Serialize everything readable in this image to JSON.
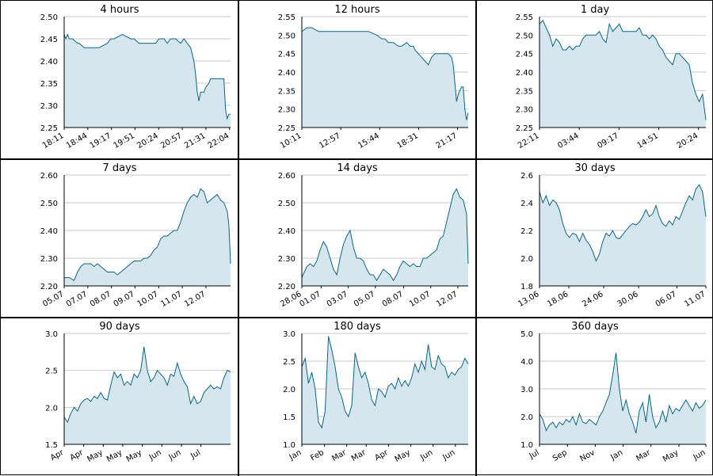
{
  "colors": {
    "line": "#0c6481",
    "fill": "#d5e6ee",
    "grid": "#b4b4b4",
    "axis": "#000000"
  },
  "chart_data": [
    {
      "type": "area",
      "title": "4 hours",
      "ylim": [
        2.25,
        2.5
      ],
      "yticks": [
        "2.50",
        "2.45",
        "2.40",
        "2.35",
        "2.30",
        "2.25"
      ],
      "xticks": [
        "18:11",
        "18:44",
        "19:17",
        "19:51",
        "20:24",
        "20:57",
        "21:31",
        "22:04"
      ],
      "xtick_positions": [
        0,
        0.142,
        0.284,
        0.426,
        0.568,
        0.71,
        0.852,
        0.994
      ],
      "x": [
        0,
        0.01,
        0.02,
        0.03,
        0.05,
        0.08,
        0.09,
        0.12,
        0.14,
        0.17,
        0.19,
        0.21,
        0.26,
        0.28,
        0.3,
        0.35,
        0.4,
        0.42,
        0.45,
        0.5,
        0.55,
        0.57,
        0.6,
        0.62,
        0.64,
        0.66,
        0.67,
        0.7,
        0.72,
        0.74,
        0.76,
        0.78,
        0.79,
        0.8,
        0.81,
        0.82,
        0.84,
        0.85,
        0.87,
        0.88,
        0.9,
        0.92,
        0.94,
        0.95,
        0.96,
        0.97,
        0.98,
        0.99,
        1.0
      ],
      "y": [
        2.46,
        2.45,
        2.46,
        2.45,
        2.45,
        2.44,
        2.44,
        2.43,
        2.43,
        2.43,
        2.43,
        2.43,
        2.44,
        2.45,
        2.45,
        2.46,
        2.45,
        2.45,
        2.44,
        2.44,
        2.44,
        2.45,
        2.45,
        2.44,
        2.45,
        2.45,
        2.45,
        2.44,
        2.45,
        2.44,
        2.43,
        2.4,
        2.37,
        2.33,
        2.31,
        2.33,
        2.33,
        2.34,
        2.35,
        2.36,
        2.36,
        2.36,
        2.36,
        2.36,
        2.36,
        2.29,
        2.27,
        2.28,
        2.28
      ]
    },
    {
      "type": "area",
      "title": "12 hours",
      "ylim": [
        2.25,
        2.55
      ],
      "yticks": [
        "2.55",
        "2.50",
        "2.45",
        "2.40",
        "2.35",
        "2.30",
        "2.25"
      ],
      "xticks": [
        "10:11",
        "12:57",
        "15:44",
        "18:31",
        "21:17"
      ],
      "xtick_positions": [
        0,
        0.234,
        0.468,
        0.702,
        0.936
      ],
      "x": [
        0,
        0.03,
        0.06,
        0.1,
        0.15,
        0.2,
        0.25,
        0.3,
        0.35,
        0.4,
        0.45,
        0.48,
        0.5,
        0.52,
        0.55,
        0.58,
        0.6,
        0.63,
        0.65,
        0.67,
        0.68,
        0.7,
        0.72,
        0.74,
        0.76,
        0.78,
        0.8,
        0.82,
        0.84,
        0.86,
        0.88,
        0.9,
        0.91,
        0.93,
        0.94,
        0.95,
        0.96,
        0.97,
        0.98,
        0.99,
        1.0
      ],
      "y": [
        2.51,
        2.52,
        2.52,
        2.51,
        2.51,
        2.51,
        2.51,
        2.51,
        2.51,
        2.51,
        2.5,
        2.49,
        2.49,
        2.48,
        2.48,
        2.47,
        2.47,
        2.48,
        2.47,
        2.47,
        2.46,
        2.45,
        2.44,
        2.43,
        2.42,
        2.44,
        2.45,
        2.45,
        2.45,
        2.45,
        2.45,
        2.44,
        2.42,
        2.32,
        2.34,
        2.35,
        2.36,
        2.36,
        2.3,
        2.27,
        2.29
      ]
    },
    {
      "type": "area",
      "title": "1 day",
      "ylim": [
        2.25,
        2.55
      ],
      "yticks": [
        "2.55",
        "2.50",
        "2.45",
        "2.40",
        "2.35",
        "2.30",
        "2.25"
      ],
      "xticks": [
        "22:11",
        "03:44",
        "09:17",
        "14:51",
        "20:24"
      ],
      "xtick_positions": [
        0,
        0.239,
        0.478,
        0.717,
        0.956
      ],
      "x": [
        0,
        0.02,
        0.04,
        0.06,
        0.08,
        0.1,
        0.12,
        0.14,
        0.16,
        0.18,
        0.2,
        0.22,
        0.24,
        0.26,
        0.28,
        0.3,
        0.32,
        0.34,
        0.36,
        0.38,
        0.4,
        0.42,
        0.44,
        0.46,
        0.48,
        0.5,
        0.52,
        0.54,
        0.56,
        0.58,
        0.6,
        0.62,
        0.64,
        0.66,
        0.68,
        0.7,
        0.72,
        0.74,
        0.76,
        0.78,
        0.8,
        0.82,
        0.84,
        0.86,
        0.88,
        0.9,
        0.92,
        0.94,
        0.96,
        0.98,
        1.0
      ],
      "y": [
        2.53,
        2.54,
        2.52,
        2.5,
        2.47,
        2.49,
        2.48,
        2.46,
        2.46,
        2.47,
        2.46,
        2.47,
        2.47,
        2.49,
        2.5,
        2.5,
        2.5,
        2.5,
        2.51,
        2.49,
        2.48,
        2.53,
        2.51,
        2.52,
        2.53,
        2.51,
        2.51,
        2.51,
        2.51,
        2.51,
        2.52,
        2.5,
        2.5,
        2.49,
        2.5,
        2.49,
        2.47,
        2.46,
        2.44,
        2.43,
        2.42,
        2.45,
        2.45,
        2.44,
        2.43,
        2.42,
        2.37,
        2.34,
        2.32,
        2.34,
        2.27
      ]
    },
    {
      "type": "area",
      "title": "7 days",
      "ylim": [
        2.2,
        2.6
      ],
      "yticks": [
        "2.60",
        "2.50",
        "2.40",
        "2.30",
        "2.20"
      ],
      "xticks": [
        "05.07",
        "07.07",
        "08.07",
        "09.07",
        "10.07",
        "11.07",
        "12.07"
      ],
      "xtick_positions": [
        0,
        0.142,
        0.284,
        0.426,
        0.568,
        0.71,
        0.852
      ],
      "x": [
        0,
        0.03,
        0.06,
        0.08,
        0.1,
        0.12,
        0.14,
        0.16,
        0.18,
        0.2,
        0.22,
        0.24,
        0.26,
        0.28,
        0.3,
        0.32,
        0.34,
        0.36,
        0.38,
        0.4,
        0.42,
        0.44,
        0.46,
        0.48,
        0.5,
        0.52,
        0.54,
        0.56,
        0.58,
        0.6,
        0.62,
        0.64,
        0.66,
        0.68,
        0.7,
        0.72,
        0.74,
        0.76,
        0.78,
        0.8,
        0.82,
        0.84,
        0.86,
        0.88,
        0.9,
        0.92,
        0.94,
        0.96,
        0.98,
        0.99,
        1.0
      ],
      "y": [
        2.23,
        2.23,
        2.22,
        2.25,
        2.27,
        2.28,
        2.28,
        2.28,
        2.27,
        2.28,
        2.27,
        2.26,
        2.25,
        2.25,
        2.25,
        2.24,
        2.25,
        2.26,
        2.27,
        2.28,
        2.29,
        2.29,
        2.29,
        2.3,
        2.3,
        2.31,
        2.33,
        2.34,
        2.37,
        2.38,
        2.38,
        2.39,
        2.4,
        2.4,
        2.43,
        2.47,
        2.5,
        2.52,
        2.53,
        2.52,
        2.55,
        2.54,
        2.5,
        2.51,
        2.52,
        2.53,
        2.51,
        2.5,
        2.47,
        2.42,
        2.28
      ]
    },
    {
      "type": "area",
      "title": "14 days",
      "ylim": [
        2.2,
        2.6
      ],
      "yticks": [
        "2.60",
        "2.50",
        "2.40",
        "2.30",
        "2.20"
      ],
      "xticks": [
        "28.06",
        "01.07",
        "03.07",
        "05.07",
        "08.07",
        "10.07",
        "12.07"
      ],
      "xtick_positions": [
        0,
        0.116,
        0.279,
        0.442,
        0.612,
        0.775,
        0.938
      ],
      "x": [
        0,
        0.03,
        0.05,
        0.07,
        0.09,
        0.11,
        0.13,
        0.15,
        0.17,
        0.19,
        0.21,
        0.23,
        0.25,
        0.27,
        0.29,
        0.31,
        0.33,
        0.35,
        0.37,
        0.39,
        0.41,
        0.43,
        0.45,
        0.47,
        0.49,
        0.51,
        0.53,
        0.55,
        0.57,
        0.59,
        0.61,
        0.63,
        0.65,
        0.67,
        0.69,
        0.71,
        0.73,
        0.75,
        0.77,
        0.79,
        0.81,
        0.83,
        0.85,
        0.87,
        0.89,
        0.91,
        0.93,
        0.95,
        0.97,
        0.99,
        1.0
      ],
      "y": [
        2.23,
        2.27,
        2.28,
        2.27,
        2.29,
        2.33,
        2.36,
        2.34,
        2.3,
        2.26,
        2.24,
        2.3,
        2.35,
        2.38,
        2.4,
        2.34,
        2.3,
        2.3,
        2.29,
        2.26,
        2.24,
        2.24,
        2.22,
        2.24,
        2.26,
        2.25,
        2.24,
        2.22,
        2.24,
        2.27,
        2.29,
        2.28,
        2.27,
        2.28,
        2.27,
        2.27,
        2.3,
        2.3,
        2.31,
        2.32,
        2.33,
        2.37,
        2.38,
        2.43,
        2.48,
        2.53,
        2.55,
        2.52,
        2.51,
        2.46,
        2.28
      ]
    },
    {
      "type": "area",
      "title": "30 days",
      "ylim": [
        1.8,
        2.6
      ],
      "yticks": [
        "2.6",
        "2.4",
        "2.2",
        "2.0",
        "1.8"
      ],
      "xticks": [
        "13.06",
        "18.06",
        "24.06",
        "30.06",
        "06.07",
        "11.07"
      ],
      "xtick_positions": [
        0,
        0.176,
        0.386,
        0.596,
        0.826,
        1.0
      ],
      "x": [
        0,
        0.02,
        0.04,
        0.06,
        0.08,
        0.1,
        0.12,
        0.14,
        0.16,
        0.18,
        0.2,
        0.22,
        0.24,
        0.26,
        0.28,
        0.3,
        0.32,
        0.34,
        0.36,
        0.38,
        0.4,
        0.42,
        0.44,
        0.46,
        0.48,
        0.5,
        0.52,
        0.54,
        0.56,
        0.58,
        0.6,
        0.62,
        0.64,
        0.66,
        0.68,
        0.7,
        0.72,
        0.74,
        0.76,
        0.78,
        0.8,
        0.82,
        0.84,
        0.86,
        0.88,
        0.9,
        0.92,
        0.94,
        0.96,
        0.98,
        1.0
      ],
      "y": [
        2.48,
        2.4,
        2.45,
        2.38,
        2.42,
        2.4,
        2.35,
        2.25,
        2.18,
        2.15,
        2.18,
        2.17,
        2.12,
        2.18,
        2.13,
        2.1,
        2.05,
        1.98,
        2.03,
        2.12,
        2.18,
        2.16,
        2.2,
        2.15,
        2.14,
        2.17,
        2.2,
        2.23,
        2.25,
        2.24,
        2.26,
        2.3,
        2.35,
        2.3,
        2.32,
        2.38,
        2.3,
        2.25,
        2.23,
        2.27,
        2.24,
        2.3,
        2.28,
        2.34,
        2.4,
        2.45,
        2.42,
        2.5,
        2.53,
        2.48,
        2.3
      ]
    },
    {
      "type": "area",
      "title": "90 days",
      "ylim": [
        1.5,
        3.0
      ],
      "yticks": [
        "3.0",
        "2.5",
        "2.0",
        "1.5"
      ],
      "xticks": [
        "Apr",
        "Apr",
        "May",
        "May",
        "May",
        "Jun",
        "Jun",
        "Jul"
      ],
      "xtick_positions": [
        0,
        0.117,
        0.235,
        0.352,
        0.47,
        0.587,
        0.705,
        0.822
      ],
      "x": [
        0,
        0.02,
        0.04,
        0.06,
        0.08,
        0.1,
        0.12,
        0.14,
        0.16,
        0.18,
        0.2,
        0.22,
        0.24,
        0.26,
        0.28,
        0.3,
        0.32,
        0.34,
        0.36,
        0.38,
        0.4,
        0.42,
        0.44,
        0.46,
        0.48,
        0.5,
        0.52,
        0.54,
        0.56,
        0.58,
        0.6,
        0.62,
        0.64,
        0.66,
        0.68,
        0.7,
        0.72,
        0.74,
        0.76,
        0.78,
        0.8,
        0.82,
        0.84,
        0.86,
        0.88,
        0.9,
        0.92,
        0.94,
        0.96,
        0.98,
        1.0
      ],
      "y": [
        1.87,
        1.8,
        1.92,
        2.0,
        1.95,
        2.05,
        2.1,
        2.12,
        2.08,
        2.15,
        2.12,
        2.2,
        2.12,
        2.1,
        2.3,
        2.48,
        2.4,
        2.45,
        2.3,
        2.35,
        2.3,
        2.45,
        2.4,
        2.5,
        2.82,
        2.5,
        2.35,
        2.4,
        2.5,
        2.45,
        2.4,
        2.3,
        2.45,
        2.42,
        2.6,
        2.45,
        2.35,
        2.28,
        2.05,
        2.15,
        2.05,
        2.08,
        2.2,
        2.25,
        2.3,
        2.25,
        2.28,
        2.25,
        2.4,
        2.5,
        2.48
      ]
    },
    {
      "type": "area",
      "title": "180 days",
      "ylim": [
        1.0,
        3.0
      ],
      "yticks": [
        "3.0",
        "2.5",
        "2.0",
        "1.5",
        "1.0"
      ],
      "xticks": [
        "Jan",
        "Feb",
        "Mar",
        "Mar",
        "Apr",
        "May",
        "Jun",
        "Jun"
      ],
      "xtick_positions": [
        0,
        0.136,
        0.27,
        0.387,
        0.521,
        0.655,
        0.789,
        0.923
      ],
      "x": [
        0,
        0.02,
        0.04,
        0.06,
        0.08,
        0.1,
        0.12,
        0.14,
        0.16,
        0.18,
        0.2,
        0.22,
        0.24,
        0.26,
        0.28,
        0.3,
        0.32,
        0.34,
        0.36,
        0.38,
        0.4,
        0.42,
        0.44,
        0.46,
        0.48,
        0.5,
        0.52,
        0.54,
        0.56,
        0.58,
        0.6,
        0.62,
        0.64,
        0.66,
        0.68,
        0.7,
        0.72,
        0.74,
        0.76,
        0.78,
        0.8,
        0.82,
        0.84,
        0.86,
        0.88,
        0.9,
        0.92,
        0.94,
        0.96,
        0.98,
        1.0
      ],
      "y": [
        2.4,
        2.55,
        2.1,
        2.3,
        2.0,
        1.4,
        1.3,
        1.6,
        2.95,
        2.7,
        2.4,
        2.0,
        1.85,
        1.6,
        1.5,
        1.7,
        2.65,
        2.4,
        2.2,
        2.3,
        2.1,
        1.8,
        1.7,
        2.0,
        1.95,
        1.85,
        2.05,
        2.1,
        2.0,
        2.2,
        2.05,
        2.15,
        2.05,
        2.2,
        2.45,
        2.3,
        2.5,
        2.35,
        2.8,
        2.4,
        2.35,
        2.6,
        2.45,
        2.4,
        2.2,
        2.3,
        2.25,
        2.35,
        2.4,
        2.55,
        2.45
      ]
    },
    {
      "type": "area",
      "title": "360 days",
      "ylim": [
        1.0,
        5.0
      ],
      "yticks": [
        "5.0",
        "4.0",
        "3.0",
        "2.0",
        "1.0"
      ],
      "xticks": [
        "Jul",
        "Sep",
        "Nov",
        "Jan",
        "Mar",
        "May",
        "Jun"
      ],
      "xtick_positions": [
        0,
        0.168,
        0.335,
        0.503,
        0.67,
        0.838,
        1.0
      ],
      "x": [
        0,
        0.02,
        0.04,
        0.06,
        0.08,
        0.1,
        0.12,
        0.14,
        0.16,
        0.18,
        0.2,
        0.22,
        0.24,
        0.26,
        0.28,
        0.3,
        0.32,
        0.34,
        0.36,
        0.38,
        0.4,
        0.42,
        0.44,
        0.46,
        0.48,
        0.5,
        0.52,
        0.54,
        0.56,
        0.58,
        0.6,
        0.62,
        0.64,
        0.66,
        0.68,
        0.7,
        0.72,
        0.74,
        0.76,
        0.78,
        0.8,
        0.82,
        0.84,
        0.86,
        0.88,
        0.9,
        0.92,
        0.94,
        0.96,
        0.98,
        1.0
      ],
      "y": [
        2.1,
        1.9,
        1.5,
        1.7,
        1.8,
        1.6,
        1.8,
        1.7,
        1.9,
        1.8,
        2.0,
        1.7,
        2.1,
        1.8,
        1.75,
        1.9,
        1.8,
        1.7,
        2.0,
        2.2,
        2.5,
        2.8,
        3.5,
        4.3,
        3.0,
        2.2,
        2.6,
        2.1,
        1.8,
        1.4,
        2.2,
        2.5,
        1.8,
        2.8,
        2.0,
        1.6,
        1.8,
        2.2,
        1.8,
        2.4,
        2.1,
        2.3,
        2.2,
        2.4,
        2.6,
        2.4,
        2.2,
        2.5,
        2.3,
        2.4,
        2.6
      ]
    }
  ]
}
